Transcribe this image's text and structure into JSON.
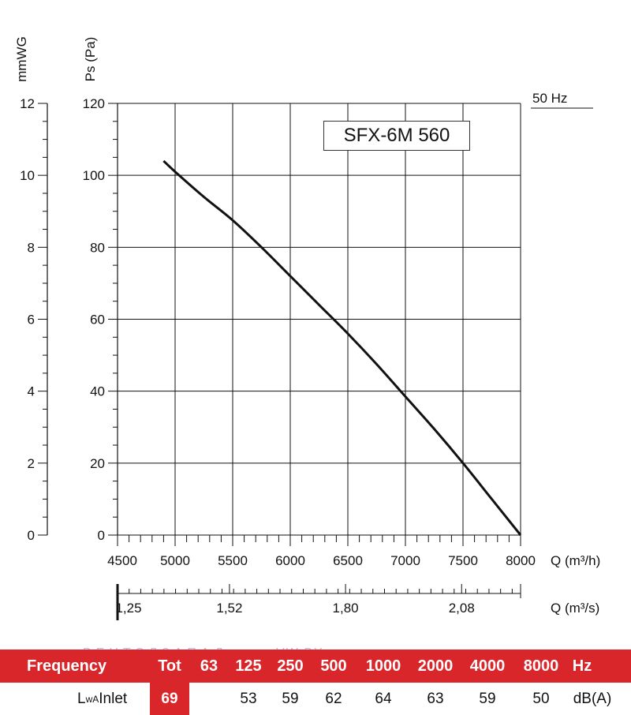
{
  "frequency_label": "50 Hz",
  "model_label": "SFX-6M 560",
  "watermark": {
    "left": "ВЕНТЭЛЗАПАД",
    "right": "VW.BY"
  },
  "chart_data": {
    "type": "line",
    "title": "SFX-6M 560",
    "xlabel": "Q (m³/h)",
    "xlabel2": "Q (m³/s)",
    "ylabel": "Ps (Pa)",
    "ylabel2": "mmWG",
    "xlim": [
      4500,
      8000
    ],
    "ylim": [
      0,
      120
    ],
    "y2lim": [
      0,
      12
    ],
    "grid": true,
    "x_ticks": [
      "4500",
      "5000",
      "5500",
      "6000",
      "6500",
      "7000",
      "7500",
      "8000"
    ],
    "y_ticks": [
      "0",
      "20",
      "40",
      "60",
      "80",
      "100",
      "120"
    ],
    "y2_ticks": [
      "0",
      "2",
      "4",
      "6",
      "8",
      "10",
      "12"
    ],
    "x2_ticks": [
      {
        "label": "1,25",
        "value": 4500
      },
      {
        "label": "1,52",
        "value": 5472
      },
      {
        "label": "1,80",
        "value": 6480
      },
      {
        "label": "2,08",
        "value": 7488
      }
    ],
    "series": [
      {
        "x": [
          4900,
          5000,
          5250,
          5500,
          5750,
          6000,
          6250,
          6500,
          6750,
          7000,
          7250,
          7500,
          7750,
          8000
        ],
        "y": [
          104,
          101,
          94,
          87.5,
          80,
          72,
          64,
          56,
          47.5,
          38.5,
          29.5,
          20,
          10,
          0
        ]
      }
    ]
  },
  "sound_table": {
    "header_label": "Frequency",
    "headers": [
      "Tot",
      "63",
      "125",
      "250",
      "500",
      "1000",
      "2000",
      "4000",
      "8000",
      "Hz"
    ],
    "row_label_main": "L",
    "row_label_sub": "wA",
    "row_label_rest": " Inlet",
    "tot_value": "69",
    "values": [
      "",
      "53",
      "59",
      "62",
      "64",
      "63",
      "59",
      "50"
    ],
    "unit": "dB(A)"
  }
}
